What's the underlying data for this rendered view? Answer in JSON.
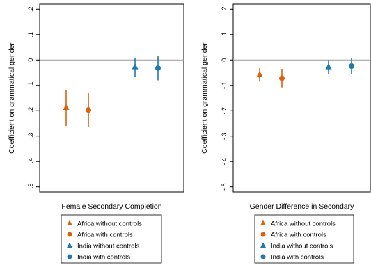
{
  "chart_data": [
    {
      "type": "scatter",
      "style": "coefficient-plot-with-confidence-intervals",
      "ylabel": "Coefficient on grammatical gender",
      "xlabel": "Female Secondary Completion",
      "ylim": [
        -0.52,
        0.22
      ],
      "yticks": [
        "-.5",
        "-.4",
        "-.3",
        "-.2",
        "-.1",
        "0",
        ".1",
        ".2"
      ],
      "ytick_values": [
        -0.5,
        -0.4,
        -0.3,
        -0.2,
        -0.1,
        0,
        0.1,
        0.2
      ],
      "reference_line": 0,
      "grid": false,
      "legend_position": "bottom",
      "series": [
        {
          "name": "Africa without controls",
          "color": "#d9620f",
          "marker": "triangle",
          "estimate": -0.187,
          "ci": [
            -0.26,
            -0.118
          ]
        },
        {
          "name": "Africa with controls",
          "color": "#d9620f",
          "marker": "circle",
          "estimate": -0.197,
          "ci": [
            -0.265,
            -0.13
          ]
        },
        {
          "name": "India without controls",
          "color": "#1f79ad",
          "marker": "triangle",
          "estimate": -0.027,
          "ci": [
            -0.065,
            0.008
          ]
        },
        {
          "name": "India with controls",
          "color": "#1f79ad",
          "marker": "circle",
          "estimate": -0.032,
          "ci": [
            -0.08,
            0.015
          ]
        }
      ]
    },
    {
      "type": "scatter",
      "style": "coefficient-plot-with-confidence-intervals",
      "ylabel": "Coefficient on grammatical gender",
      "xlabel": "Gender Difference in Secondary",
      "ylim": [
        -0.52,
        0.22
      ],
      "yticks": [
        "-.5",
        "-.4",
        "-.3",
        "-.2",
        "-.1",
        "0",
        ".1",
        ".2"
      ],
      "ytick_values": [
        -0.5,
        -0.4,
        -0.3,
        -0.2,
        -0.1,
        0,
        0.1,
        0.2
      ],
      "reference_line": 0,
      "grid": false,
      "legend_position": "bottom",
      "series": [
        {
          "name": "Africa without controls",
          "color": "#d9620f",
          "marker": "triangle",
          "estimate": -0.057,
          "ci": [
            -0.085,
            -0.032
          ]
        },
        {
          "name": "Africa with controls",
          "color": "#d9620f",
          "marker": "circle",
          "estimate": -0.072,
          "ci": [
            -0.108,
            -0.035
          ]
        },
        {
          "name": "India without controls",
          "color": "#1f79ad",
          "marker": "triangle",
          "estimate": -0.027,
          "ci": [
            -0.057,
            0.0
          ]
        },
        {
          "name": "India with controls",
          "color": "#1f79ad",
          "marker": "circle",
          "estimate": -0.024,
          "ci": [
            -0.055,
            0.008
          ]
        }
      ]
    }
  ]
}
